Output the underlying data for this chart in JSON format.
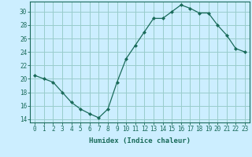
{
  "x": [
    0,
    1,
    2,
    3,
    4,
    5,
    6,
    7,
    8,
    9,
    10,
    11,
    12,
    13,
    14,
    15,
    16,
    17,
    18,
    19,
    20,
    21,
    22,
    23
  ],
  "y": [
    20.5,
    20.0,
    19.5,
    18.0,
    16.5,
    15.5,
    14.8,
    14.2,
    15.5,
    19.5,
    23.0,
    25.0,
    27.0,
    29.0,
    29.0,
    30.0,
    31.0,
    30.5,
    29.8,
    29.8,
    28.0,
    26.5,
    24.5,
    24.0
  ],
  "line_color": "#1a6b5a",
  "marker": "D",
  "marker_size": 2.0,
  "bg_color": "#cceeff",
  "grid_color": "#99cccc",
  "xlabel": "Humidex (Indice chaleur)",
  "xlim": [
    -0.5,
    23.5
  ],
  "ylim": [
    13.5,
    31.5
  ],
  "yticks": [
    14,
    16,
    18,
    20,
    22,
    24,
    26,
    28,
    30
  ],
  "xticks": [
    0,
    1,
    2,
    3,
    4,
    5,
    6,
    7,
    8,
    9,
    10,
    11,
    12,
    13,
    14,
    15,
    16,
    17,
    18,
    19,
    20,
    21,
    22,
    23
  ],
  "xtick_labels": [
    "0",
    "1",
    "2",
    "3",
    "4",
    "5",
    "6",
    "7",
    "8",
    "9",
    "10",
    "11",
    "12",
    "13",
    "14",
    "15",
    "16",
    "17",
    "18",
    "19",
    "20",
    "21",
    "22",
    "23"
  ],
  "axis_color": "#1a6b5a",
  "label_fontsize": 6.5,
  "tick_fontsize": 5.5
}
